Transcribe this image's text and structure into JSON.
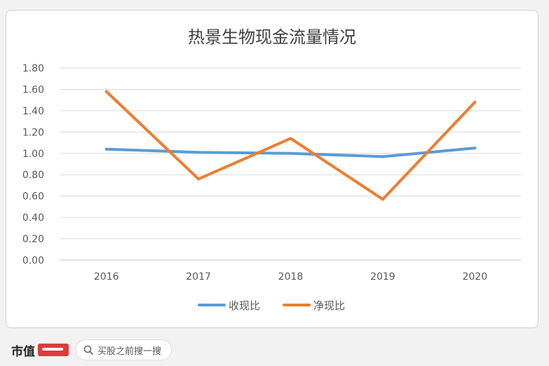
{
  "chart_data": {
    "type": "line",
    "title": "热景生物现金流量情况",
    "categories": [
      "2016",
      "2017",
      "2018",
      "2019",
      "2020"
    ],
    "y_ticks": [
      "0.00",
      "0.20",
      "0.40",
      "0.60",
      "0.80",
      "1.00",
      "1.20",
      "1.40",
      "1.60",
      "1.80"
    ],
    "ylim": [
      0,
      1.8
    ],
    "grid": true,
    "legend_position": "bottom",
    "series": [
      {
        "name": "收现比",
        "color": "#5b9bd5",
        "values": [
          1.04,
          1.01,
          1.0,
          0.97,
          1.05
        ]
      },
      {
        "name": "净现比",
        "color": "#ed7d31",
        "values": [
          1.58,
          0.76,
          1.14,
          0.57,
          1.48
        ]
      }
    ]
  },
  "footer": {
    "brand": "市值",
    "search_placeholder": "买股之前搜一搜"
  }
}
